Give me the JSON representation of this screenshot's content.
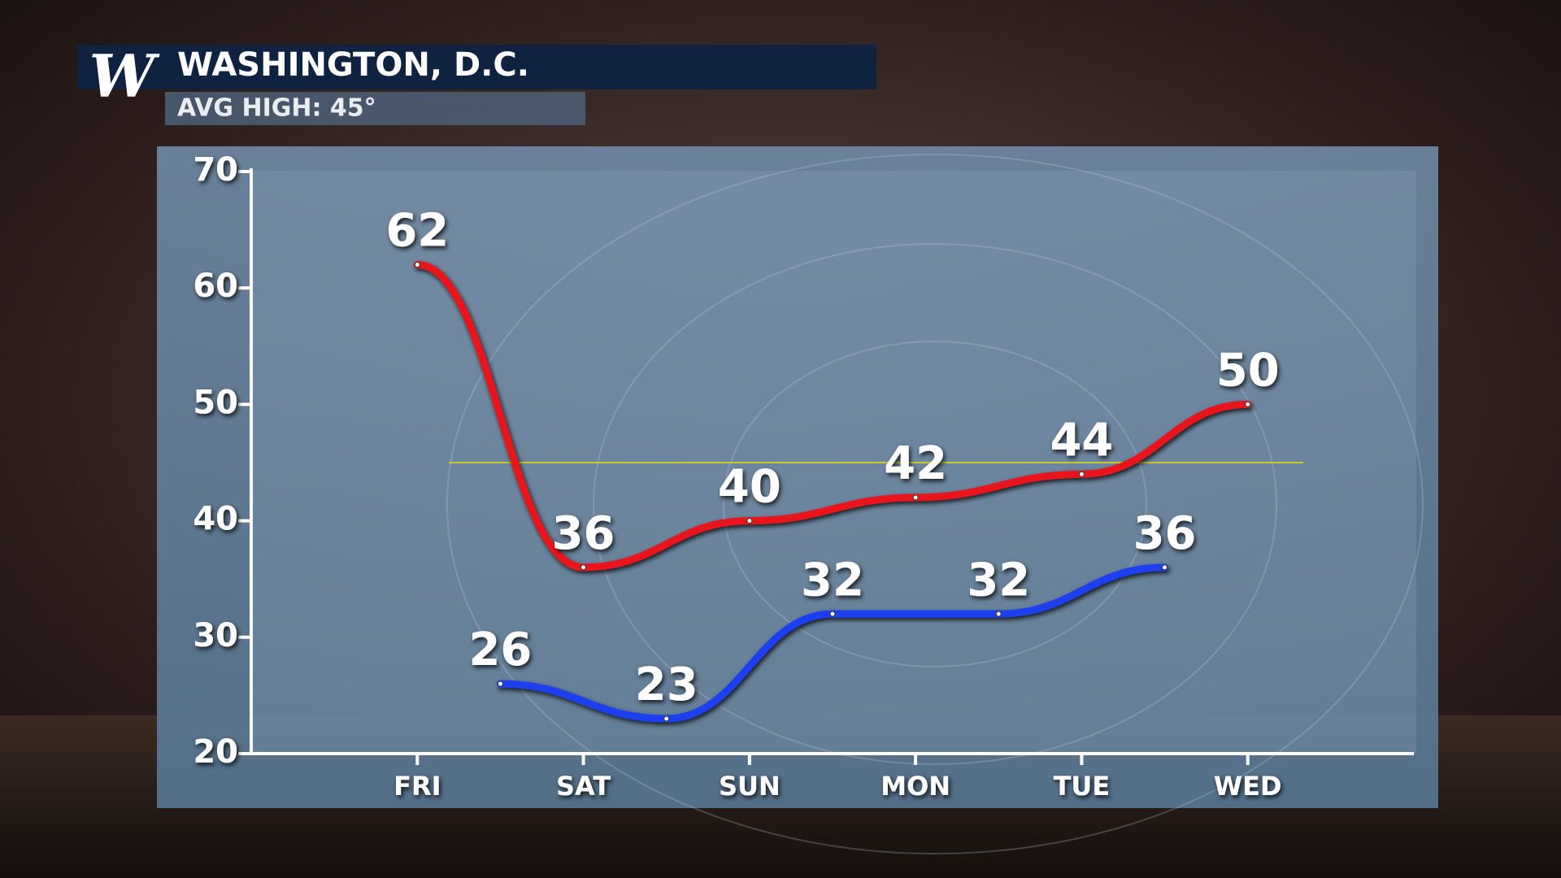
{
  "chart_data": {
    "type": "line",
    "title": "WASHINGTON, D.C.",
    "subtitle": "AVG HIGH: 45°",
    "logo": "W",
    "reference_line": {
      "value": 45,
      "color": "#c9c830"
    },
    "xlim": [
      -1,
      6
    ],
    "xticks": [
      {
        "value": 0,
        "label": "FRI"
      },
      {
        "value": 1,
        "label": "SAT"
      },
      {
        "value": 2,
        "label": "SUN"
      },
      {
        "value": 3,
        "label": "MON"
      },
      {
        "value": 4,
        "label": "TUE"
      },
      {
        "value": 5,
        "label": "WED"
      }
    ],
    "ylim": [
      20,
      70
    ],
    "yticks": [
      20,
      30,
      40,
      50,
      60,
      70
    ],
    "series": [
      {
        "color": "#e8161b",
        "x": [
          0,
          1,
          2,
          3,
          4,
          5
        ],
        "values": [
          62,
          36,
          40,
          42,
          44,
          50
        ]
      },
      {
        "color": "#1f3ff0",
        "x": [
          0.5,
          1.5,
          2.5,
          3.5,
          4.5
        ],
        "values": [
          26,
          23,
          32,
          32,
          36
        ]
      }
    ]
  }
}
